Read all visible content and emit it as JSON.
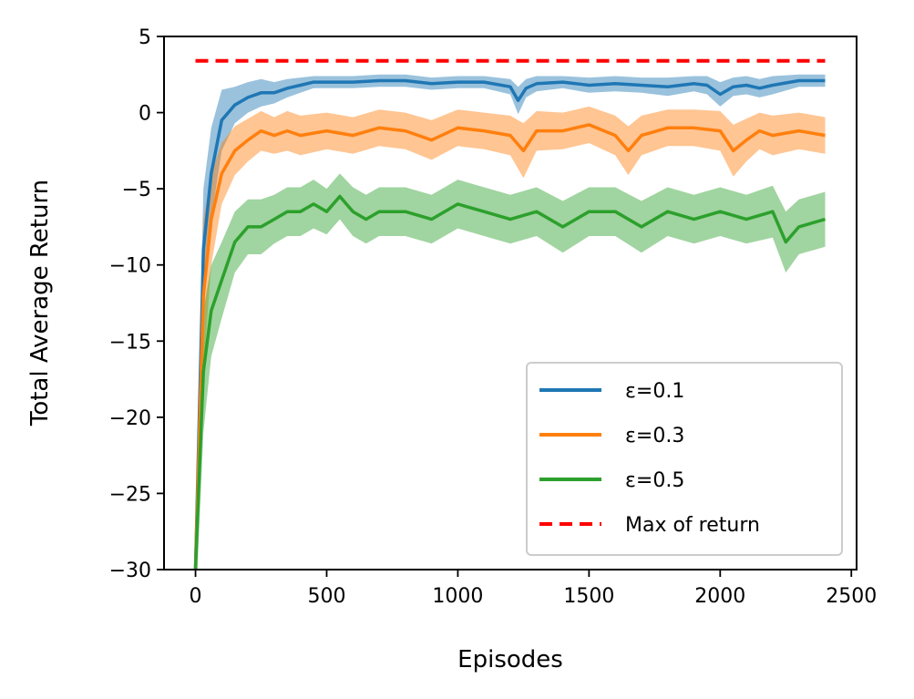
{
  "chart_data": {
    "type": "line",
    "title": "",
    "xlabel": "Episodes",
    "ylabel": "Total Average Return",
    "xlim": [
      -120,
      2520
    ],
    "ylim": [
      -30,
      5
    ],
    "xticks": [
      "0",
      "500",
      "1000",
      "1500",
      "2000",
      "2500"
    ],
    "xtick_values": [
      0,
      500,
      1000,
      1500,
      2000,
      2500
    ],
    "yticks": [
      "5",
      "0",
      "−5",
      "−10",
      "−15",
      "−20",
      "−25",
      "−30"
    ],
    "ytick_values": [
      5,
      0,
      -5,
      -10,
      -15,
      -20,
      -25,
      -30
    ],
    "grid": false,
    "legend_position": "bottom-right",
    "series": [
      {
        "name": "ε=0.1",
        "color": "#1f77b4",
        "x": [
          0,
          30,
          60,
          100,
          150,
          200,
          250,
          300,
          350,
          400,
          450,
          500,
          550,
          600,
          700,
          800,
          900,
          1000,
          1100,
          1200,
          1230,
          1260,
          1300,
          1400,
          1500,
          1600,
          1700,
          1800,
          1900,
          1950,
          2000,
          2050,
          2100,
          2150,
          2200,
          2300,
          2400
        ],
        "y": [
          -30,
          -9,
          -4,
          -0.5,
          0.5,
          1,
          1.3,
          1.3,
          1.6,
          1.8,
          2,
          2,
          2,
          2,
          2.1,
          2.1,
          1.9,
          2,
          2,
          1.7,
          0.8,
          1.6,
          1.9,
          2,
          1.8,
          1.9,
          1.8,
          1.7,
          1.9,
          1.8,
          1.2,
          1.7,
          1.8,
          1.6,
          1.8,
          2.1,
          2.1
        ],
        "band": [
          3,
          4,
          3,
          2,
          1.2,
          1,
          0.9,
          0.7,
          0.6,
          0.5,
          0.4,
          0.4,
          0.4,
          0.4,
          0.4,
          0.4,
          0.4,
          0.4,
          0.4,
          0.5,
          0.9,
          0.6,
          0.5,
          0.4,
          0.5,
          0.5,
          0.5,
          0.6,
          0.5,
          0.6,
          0.8,
          0.6,
          0.6,
          0.6,
          0.6,
          0.4,
          0.4
        ]
      },
      {
        "name": "ε=0.3",
        "color": "#ff7f0e",
        "x": [
          0,
          30,
          60,
          100,
          150,
          200,
          250,
          300,
          350,
          400,
          500,
          600,
          700,
          800,
          900,
          1000,
          1100,
          1200,
          1250,
          1300,
          1400,
          1500,
          1600,
          1650,
          1700,
          1800,
          1900,
          2000,
          2050,
          2100,
          2150,
          2200,
          2300,
          2400
        ],
        "y": [
          -30,
          -12,
          -7,
          -4,
          -2.5,
          -1.8,
          -1.2,
          -1.5,
          -1.2,
          -1.5,
          -1.2,
          -1.5,
          -1,
          -1.2,
          -1.8,
          -1,
          -1.2,
          -1.5,
          -2.5,
          -1.2,
          -1.2,
          -0.8,
          -1.5,
          -2.5,
          -1.5,
          -1,
          -1,
          -1.2,
          -2.5,
          -1.8,
          -1.2,
          -1.5,
          -1.2,
          -1.5
        ],
        "band": [
          3,
          5,
          3,
          2,
          1.6,
          1.4,
          1.3,
          1.2,
          1.3,
          1.3,
          1.2,
          1.2,
          1.2,
          1.2,
          1.3,
          1.2,
          1.2,
          1.3,
          1.8,
          1.3,
          1.2,
          1.2,
          1.3,
          1.6,
          1.3,
          1.2,
          1.2,
          1.3,
          1.7,
          1.4,
          1.2,
          1.3,
          1.2,
          1.2
        ]
      },
      {
        "name": "ε=0.5",
        "color": "#2ca02c",
        "x": [
          0,
          30,
          60,
          100,
          150,
          200,
          250,
          300,
          350,
          400,
          450,
          500,
          550,
          600,
          650,
          700,
          800,
          900,
          1000,
          1100,
          1200,
          1300,
          1400,
          1500,
          1600,
          1700,
          1800,
          1900,
          2000,
          2100,
          2200,
          2250,
          2300,
          2400
        ],
        "y": [
          -30,
          -17,
          -13,
          -11,
          -8.5,
          -7.5,
          -7.5,
          -7,
          -6.5,
          -6.5,
          -6,
          -6.5,
          -5.5,
          -6.5,
          -7,
          -6.5,
          -6.5,
          -7,
          -6,
          -6.5,
          -7,
          -6.5,
          -7.5,
          -6.5,
          -6.5,
          -7.5,
          -6.5,
          -7,
          -6.5,
          -7,
          -6.5,
          -8.5,
          -7.5,
          -7
        ],
        "band": [
          3,
          4,
          3,
          2.5,
          2,
          1.8,
          1.8,
          1.6,
          1.6,
          1.6,
          1.6,
          1.5,
          1.5,
          1.6,
          1.6,
          1.6,
          1.6,
          1.6,
          1.6,
          1.6,
          1.6,
          1.6,
          1.7,
          1.6,
          1.6,
          1.7,
          1.6,
          1.6,
          1.6,
          1.6,
          1.7,
          2,
          1.8,
          1.8
        ]
      },
      {
        "name": "Max of return",
        "color": "#ff0000",
        "style": "dashed",
        "x": [
          0,
          2400
        ],
        "y": [
          3.4,
          3.4
        ]
      }
    ]
  }
}
